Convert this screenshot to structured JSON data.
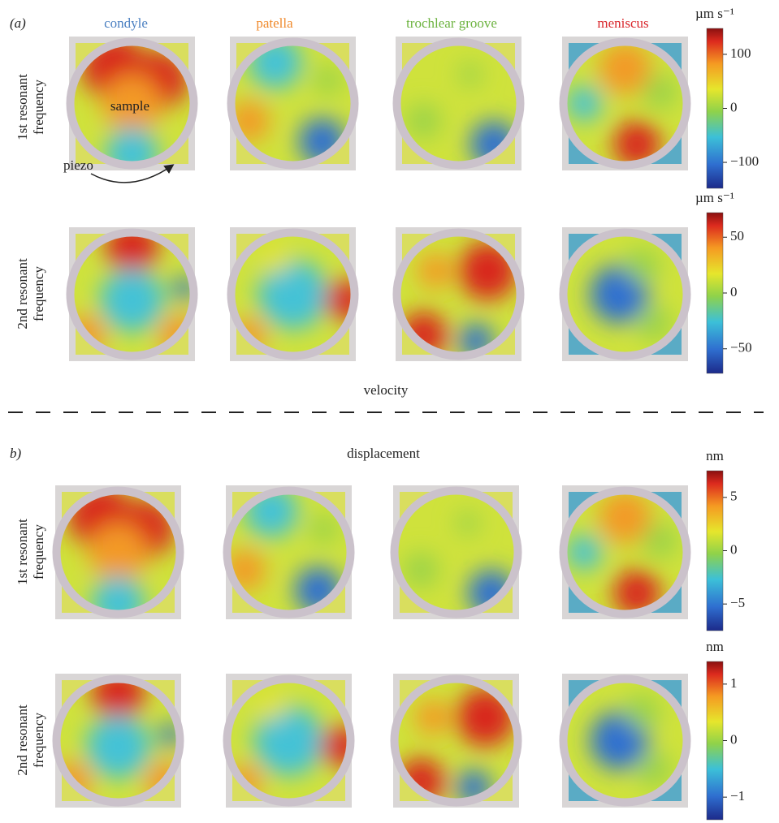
{
  "panel_a": {
    "label": "(a)",
    "columns": [
      "condyle",
      "patella",
      "trochlear groove",
      "meniscus"
    ],
    "rows": [
      "1st resonant frequency",
      "2nd resonant frequency"
    ],
    "annotations": [
      "sample",
      "piezo"
    ],
    "caption": "velocity",
    "colorbars": [
      {
        "unit": "µm s⁻¹",
        "lim": [
          -148,
          148
        ],
        "ticks": [
          100,
          0,
          {
            "value": -100,
            "label": "−100"
          }
        ]
      },
      {
        "unit": "µm s⁻¹",
        "lim": [
          -72,
          72
        ],
        "ticks": [
          50,
          0,
          {
            "value": -50,
            "label": "−50"
          }
        ]
      }
    ]
  },
  "panel_b": {
    "label": "b)",
    "title": "displacement",
    "rows": [
      "1st resonant frequency",
      "2nd resonant frequency"
    ],
    "colorbars": [
      {
        "unit": "nm",
        "lim": [
          -7.5,
          7.5
        ],
        "ticks": [
          5,
          0,
          {
            "value": -5,
            "label": "−5"
          }
        ]
      },
      {
        "unit": "nm",
        "lim": [
          -1.4,
          1.4
        ],
        "ticks": [
          1,
          0,
          {
            "value": -1,
            "label": "−1"
          }
        ]
      }
    ]
  }
}
